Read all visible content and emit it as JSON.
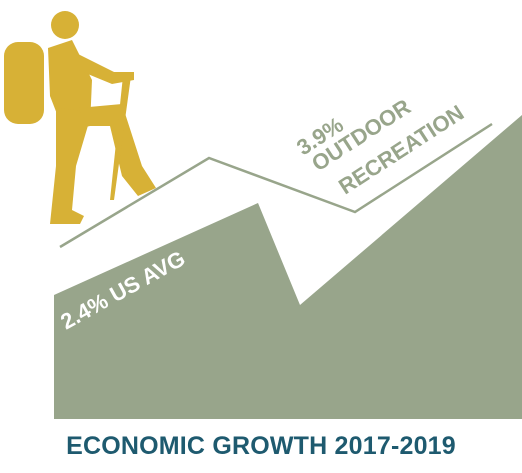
{
  "colors": {
    "area_fill": "#98a58b",
    "outline_stroke": "#98a58b",
    "hiker": "#d7b136",
    "label_green": "#98a58b",
    "label_white": "#ffffff",
    "title": "#1e5a6f"
  },
  "labels": {
    "us_avg": "2.4% US AVG",
    "outdoor_value": "3.9%",
    "outdoor_line1": "OUTDOOR",
    "outdoor_line2": "RECREATION"
  },
  "title": "ECONOMIC GROWTH 2017-2019",
  "icons": {
    "hiker": "hiker-icon"
  },
  "chart_data": {
    "type": "area",
    "series": [
      {
        "name": "US AVG",
        "value": 2.4,
        "unit": "%"
      },
      {
        "name": "OUTDOOR RECREATION",
        "value": 3.9,
        "unit": "%"
      }
    ],
    "title": "ECONOMIC GROWTH 2017-2019"
  }
}
